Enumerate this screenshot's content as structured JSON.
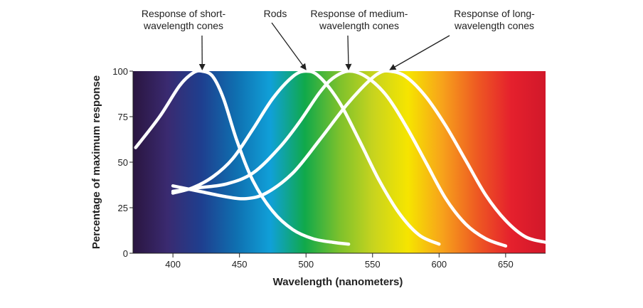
{
  "chart_data": {
    "type": "line",
    "ylabel": "Percentage of maximum response",
    "xlabel": "Wavelength (nanometers)",
    "xlim": [
      370,
      680
    ],
    "ylim": [
      0,
      100
    ],
    "x_ticks": [
      400,
      450,
      500,
      550,
      600,
      650
    ],
    "y_ticks": [
      0,
      25,
      50,
      75,
      100
    ],
    "grid": false,
    "background": "visible spectrum gradient",
    "spectrum_colors": [
      "#2a1540",
      "#3a2a70",
      "#1e3f8f",
      "#0f6fb0",
      "#10a0d8",
      "#10a94a",
      "#7cc12c",
      "#c8d41e",
      "#f6e500",
      "#f7a21b",
      "#ee5a22",
      "#e5202d",
      "#d1182a"
    ],
    "curve_color": "#ffffff",
    "series": [
      {
        "key": "short",
        "x": [
          372,
          390,
          405,
          415,
          422,
          430,
          438,
          448,
          460,
          475,
          490,
          505,
          520,
          532
        ],
        "y": [
          58,
          75,
          92,
          99,
          100,
          97,
          85,
          62,
          40,
          23,
          13,
          8,
          6,
          5
        ]
      },
      {
        "key": "rods",
        "x": [
          400,
          415,
          430,
          445,
          460,
          475,
          490,
          500,
          510,
          525,
          540,
          555,
          570,
          585,
          600
        ],
        "y": [
          33,
          36,
          42,
          52,
          68,
          85,
          97,
          100,
          97,
          83,
          62,
          40,
          22,
          10,
          5
        ]
      },
      {
        "key": "medium",
        "x": [
          400,
          420,
          440,
          460,
          480,
          495,
          510,
          520,
          532,
          545,
          560,
          575,
          590,
          605,
          620,
          635,
          650
        ],
        "y": [
          34,
          36,
          38,
          44,
          58,
          72,
          88,
          96,
          100,
          97,
          87,
          70,
          50,
          30,
          16,
          8,
          4
        ]
      },
      {
        "key": "long",
        "x": [
          400,
          420,
          440,
          455,
          470,
          490,
          510,
          530,
          545,
          555,
          563,
          575,
          590,
          605,
          620,
          635,
          650,
          665,
          680
        ],
        "y": [
          37,
          34,
          31,
          30,
          33,
          44,
          62,
          81,
          93,
          99,
          100,
          97,
          86,
          70,
          51,
          32,
          18,
          9,
          6
        ]
      }
    ],
    "annotations": [
      {
        "key": "short",
        "lines": [
          "Response of short-",
          "wavelength cones"
        ],
        "target": [
          422,
          100
        ]
      },
      {
        "key": "rods",
        "lines": [
          "Rods"
        ],
        "target": [
          500,
          100
        ]
      },
      {
        "key": "medium",
        "lines": [
          "Response of medium-",
          "wavelength cones"
        ],
        "target": [
          532,
          100
        ]
      },
      {
        "key": "long",
        "lines": [
          "Response of long-",
          "wavelength cones"
        ],
        "target": [
          563,
          100
        ]
      }
    ]
  }
}
